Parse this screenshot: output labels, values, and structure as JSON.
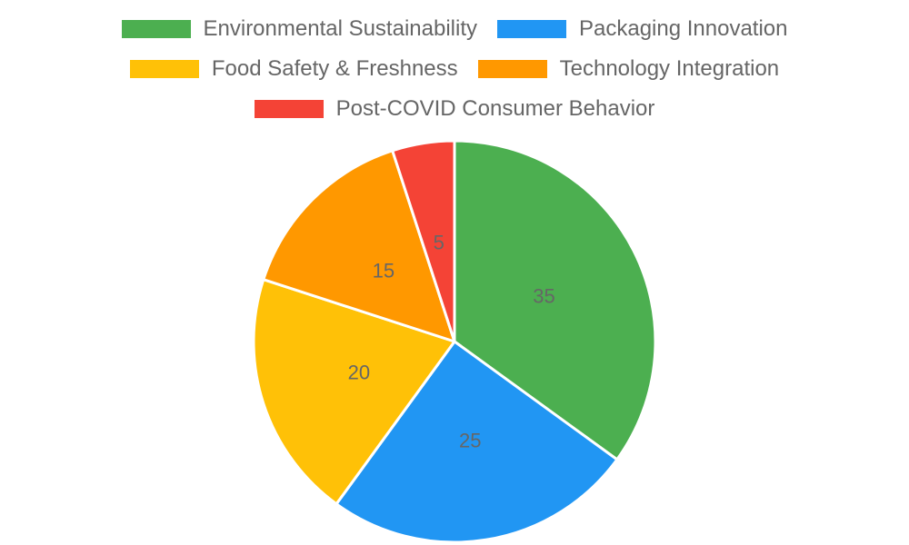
{
  "chart_data": {
    "type": "pie",
    "categories": [
      "Environmental Sustainability",
      "Packaging Innovation",
      "Food Safety & Freshness",
      "Technology Integration",
      "Post-COVID Consumer Behavior"
    ],
    "values": [
      35,
      25,
      20,
      15,
      5
    ],
    "colors": [
      "#4caf50",
      "#2196f3",
      "#ffc107",
      "#ff9800",
      "#f44336"
    ],
    "data_labels": [
      "35",
      "25",
      "20",
      "15",
      "5"
    ],
    "legend_position": "top",
    "title": ""
  }
}
